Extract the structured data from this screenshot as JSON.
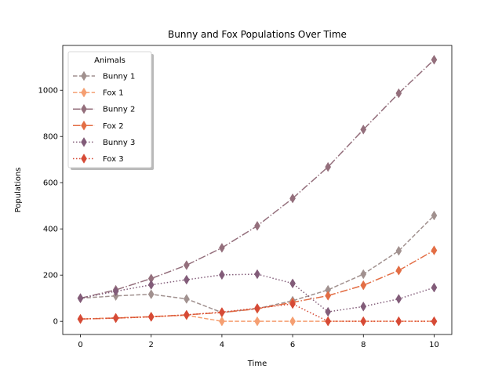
{
  "chart_data": {
    "type": "line",
    "title": "Bunny and Fox Populations Over Time",
    "xlabel": "Time",
    "ylabel": "Populations",
    "xlim": [
      -0.5,
      10.5
    ],
    "ylim": [
      -57,
      1194
    ],
    "xticks": [
      0,
      2,
      4,
      6,
      8,
      10
    ],
    "yticks": [
      0,
      200,
      400,
      600,
      800,
      1000
    ],
    "grid": false,
    "legend": {
      "title": "Animals",
      "placement": "top-left"
    },
    "x": [
      0,
      1,
      2,
      3,
      4,
      5,
      6,
      7,
      8,
      9,
      10
    ],
    "series": [
      {
        "name": "Bunny 1",
        "color": "#a1918f",
        "dash": "dashed",
        "values": [
          100,
          110,
          117,
          97,
          38,
          55,
          89,
          136,
          204,
          305,
          458
        ]
      },
      {
        "name": "Fox 1",
        "color": "#f59f72",
        "dash": "dashed",
        "values": [
          10,
          15,
          20,
          26,
          0,
          0,
          0,
          0,
          0,
          0,
          0
        ]
      },
      {
        "name": "Bunny 2",
        "color": "#946f7c",
        "dash": "dashdot",
        "values": [
          100,
          136,
          185,
          243,
          318,
          413,
          532,
          668,
          830,
          987,
          1132
        ]
      },
      {
        "name": "Fox 2",
        "color": "#e36e45",
        "dash": "dashdot",
        "values": [
          10,
          14,
          20,
          28,
          38,
          54,
          82,
          111,
          156,
          220,
          307
        ]
      },
      {
        "name": "Bunny 3",
        "color": "#825c79",
        "dash": "dotted",
        "values": [
          100,
          130,
          158,
          180,
          201,
          204,
          164,
          41,
          64,
          97,
          146
        ]
      },
      {
        "name": "Fox 3",
        "color": "#d64a36",
        "dash": "dotted",
        "values": [
          10,
          14,
          19,
          28,
          40,
          57,
          75,
          0,
          0,
          0,
          0
        ]
      }
    ]
  }
}
